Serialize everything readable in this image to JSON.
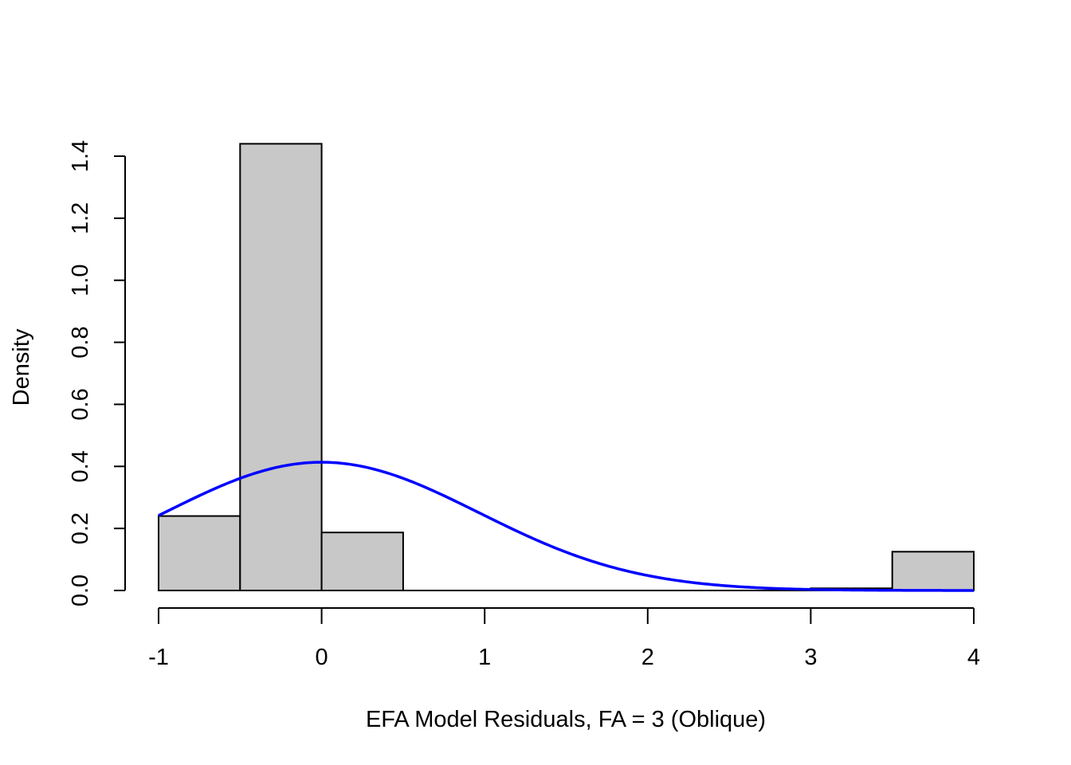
{
  "chart_data": {
    "type": "bar",
    "subtype": "histogram",
    "title": "",
    "xlabel": "EFA Model Residuals, FA = 3 (Oblique)",
    "ylabel": "Density",
    "xlim": [
      -1,
      4
    ],
    "ylim": [
      0,
      1.4
    ],
    "xticks": [
      "-1",
      "0",
      "1",
      "2",
      "3",
      "4"
    ],
    "yticks": [
      "0.0",
      "0.2",
      "0.4",
      "0.6",
      "0.8",
      "1.0",
      "1.2",
      "1.4"
    ],
    "bin_edges": [
      -1,
      -0.5,
      0,
      0.5,
      1,
      1.5,
      2,
      2.5,
      3,
      3.5,
      4
    ],
    "values": [
      0.24,
      1.44,
      0.187,
      0,
      0,
      0,
      0,
      0,
      0.007,
      0.125
    ],
    "bar_color": "#c8c8c8",
    "density_curve": {
      "type": "normal",
      "mean": 0,
      "sd": 0.965,
      "color": "#0000ff"
    },
    "grid": false,
    "legend": "none"
  }
}
